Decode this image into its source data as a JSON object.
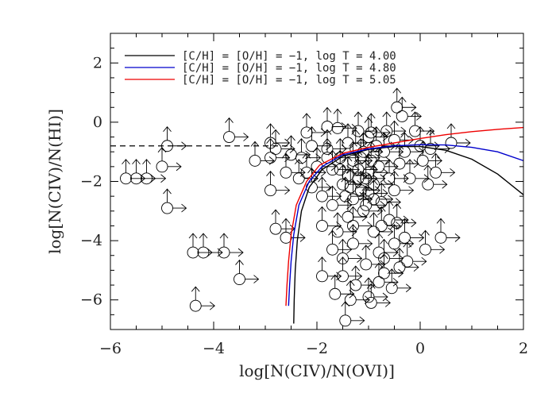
{
  "chart_data": {
    "type": "scatter",
    "title": "",
    "xlabel": "log[N(CIV)/N(OVI)]",
    "ylabel": "log[N(CIV)/N(HI)]",
    "xlim": [
      -6,
      2
    ],
    "ylim": [
      -7,
      3
    ],
    "x_ticks": [
      -6,
      -4,
      -2,
      0,
      2
    ],
    "x_tick_labels": [
      "−6",
      "−4",
      "−2",
      "0",
      "2"
    ],
    "y_ticks": [
      -6,
      -4,
      -2,
      0,
      2
    ],
    "y_tick_labels": [
      "−6",
      "−4",
      "−2",
      "0",
      "2"
    ],
    "grid": false,
    "legend_position": "top-left",
    "reference_line": {
      "y": -0.8,
      "x_range": [
        -6,
        -2.5
      ],
      "style": "dashed",
      "color": "#000000"
    },
    "series": [
      {
        "name": "[C/H] = [O/H] = −1, log T = 4.00",
        "color": "#000000",
        "points": [
          [
            -2.45,
            -6.8
          ],
          [
            -2.44,
            -6
          ],
          [
            -2.42,
            -5
          ],
          [
            -2.38,
            -4
          ],
          [
            -2.3,
            -3
          ],
          [
            -2.15,
            -2.2
          ],
          [
            -1.9,
            -1.6
          ],
          [
            -1.5,
            -1.15
          ],
          [
            -1,
            -0.92
          ],
          [
            -0.5,
            -0.82
          ],
          [
            0,
            -0.82
          ],
          [
            0.5,
            -0.95
          ],
          [
            1,
            -1.25
          ],
          [
            1.5,
            -1.75
          ],
          [
            2,
            -2.45
          ]
        ]
      },
      {
        "name": "[C/H] = [O/H] = −1, log T = 4.80",
        "color": "#0000cc",
        "points": [
          [
            -2.55,
            -6.2
          ],
          [
            -2.53,
            -5.5
          ],
          [
            -2.5,
            -4.7
          ],
          [
            -2.45,
            -3.8
          ],
          [
            -2.35,
            -2.8
          ],
          [
            -2.15,
            -2
          ],
          [
            -1.9,
            -1.5
          ],
          [
            -1.5,
            -1.1
          ],
          [
            -1,
            -0.9
          ],
          [
            -0.5,
            -0.8
          ],
          [
            0,
            -0.76
          ],
          [
            0.5,
            -0.77
          ],
          [
            1,
            -0.85
          ],
          [
            1.5,
            -1
          ],
          [
            2,
            -1.3
          ]
        ]
      },
      {
        "name": "[C/H] = [O/H] = −1, log T = 5.05",
        "color": "#ee0000",
        "points": [
          [
            -2.6,
            -6.2
          ],
          [
            -2.58,
            -5.5
          ],
          [
            -2.55,
            -4.7
          ],
          [
            -2.5,
            -3.8
          ],
          [
            -2.4,
            -2.8
          ],
          [
            -2.2,
            -2
          ],
          [
            -1.95,
            -1.45
          ],
          [
            -1.5,
            -1.05
          ],
          [
            -1,
            -0.85
          ],
          [
            -0.5,
            -0.7
          ],
          [
            0,
            -0.55
          ],
          [
            0.5,
            -0.42
          ],
          [
            1,
            -0.32
          ],
          [
            1.5,
            -0.24
          ],
          [
            2,
            -0.18
          ]
        ]
      }
    ],
    "data_points": [
      [
        -5.7,
        -1.9
      ],
      [
        -5.5,
        -1.9
      ],
      [
        -5.3,
        -1.9
      ],
      [
        -5,
        -1.5
      ],
      [
        -4.9,
        -0.8
      ],
      [
        -4.9,
        -2.9
      ],
      [
        -4.4,
        -4.4
      ],
      [
        -4.2,
        -4.4
      ],
      [
        -4.35,
        -6.2
      ],
      [
        -3.7,
        -0.5
      ],
      [
        -3.8,
        -4.4
      ],
      [
        -3.5,
        -5.3
      ],
      [
        -3.2,
        -1.3
      ],
      [
        -2.9,
        -0.7
      ],
      [
        -2.9,
        -1.2
      ],
      [
        -2.8,
        -0.9
      ],
      [
        -2.6,
        -1.7
      ],
      [
        -2.9,
        -2.3
      ],
      [
        -2.8,
        -3.6
      ],
      [
        -2.6,
        -3.9
      ],
      [
        -2.3,
        -1.2
      ],
      [
        -2.2,
        -1.7
      ],
      [
        -2.1,
        -2.2
      ],
      [
        -2.1,
        -0.8
      ],
      [
        -2,
        -1.5
      ],
      [
        -1.9,
        -2.5
      ],
      [
        -1.9,
        -3.5
      ],
      [
        -1.8,
        -0.9
      ],
      [
        -1.7,
        -1.6
      ],
      [
        -1.7,
        -2.8
      ],
      [
        -1.6,
        -0.2
      ],
      [
        -1.55,
        -1.2
      ],
      [
        -1.5,
        -2.1
      ],
      [
        -1.5,
        -4.6
      ],
      [
        -1.5,
        -5.2
      ],
      [
        -1.4,
        -0.7
      ],
      [
        -1.4,
        -1.8
      ],
      [
        -1.4,
        -3.2
      ],
      [
        -1.3,
        -1.3
      ],
      [
        -1.3,
        -2.6
      ],
      [
        -1.3,
        -4.1
      ],
      [
        -1.25,
        -5.5
      ],
      [
        -1.2,
        -0.3
      ],
      [
        -1.2,
        -1.9
      ],
      [
        -1.15,
        -2.3
      ],
      [
        -1.1,
        -1
      ],
      [
        -1.1,
        -3
      ],
      [
        -1.05,
        -4.8
      ],
      [
        -1,
        -0.5
      ],
      [
        -1,
        -1.7
      ],
      [
        -1,
        -2.4
      ],
      [
        -1,
        -5.9
      ],
      [
        -0.95,
        -1.3
      ],
      [
        -0.9,
        -2.1
      ],
      [
        -0.9,
        -3.7
      ],
      [
        -0.85,
        -0.8
      ],
      [
        -0.8,
        -1.5
      ],
      [
        -0.8,
        -4.4
      ],
      [
        -0.75,
        -2.7
      ],
      [
        -0.7,
        -1
      ],
      [
        -0.7,
        -5.1
      ],
      [
        -0.65,
        -0.3
      ],
      [
        -0.6,
        -1.9
      ],
      [
        -0.6,
        -3.3
      ],
      [
        -0.5,
        -0.6
      ],
      [
        -0.5,
        -2.3
      ],
      [
        -0.5,
        -4.1
      ],
      [
        -0.45,
        0.5
      ],
      [
        -0.4,
        -1.4
      ],
      [
        -0.4,
        -4.9
      ],
      [
        -0.35,
        0.2
      ],
      [
        -0.3,
        -1
      ],
      [
        -0.3,
        -3.9
      ],
      [
        -0.2,
        -1.9
      ],
      [
        -0.1,
        -0.3
      ],
      [
        0,
        -0.8
      ],
      [
        0.05,
        -1.3
      ],
      [
        0.1,
        -4.3
      ],
      [
        0.3,
        -1.7
      ],
      [
        0.4,
        -3.9
      ],
      [
        0.6,
        -0.7
      ],
      [
        -1.45,
        -6.7
      ],
      [
        -1.35,
        -6
      ],
      [
        -0.95,
        -6.1
      ],
      [
        -2.2,
        -0.35
      ],
      [
        -1.8,
        -0.15
      ],
      [
        -1.65,
        -5.8
      ],
      [
        -1.2,
        -1.6
      ],
      [
        -1.35,
        -2.2
      ],
      [
        -1.05,
        -1.9
      ],
      [
        -0.9,
        -2.6
      ],
      [
        -1.25,
        -0.9
      ],
      [
        -0.95,
        -0.35
      ],
      [
        -1.6,
        -3.7
      ],
      [
        -0.55,
        -5.6
      ],
      [
        -0.7,
        -4.6
      ],
      [
        -0.25,
        -4.7
      ],
      [
        0.2,
        -0.9
      ],
      [
        -1.8,
        -1.2
      ],
      [
        -2.5,
        -1.1
      ],
      [
        -2.35,
        -1.9
      ],
      [
        -1.55,
        -1.6
      ],
      [
        -1.05,
        -2.8
      ],
      [
        -0.75,
        -3.5
      ],
      [
        -1.3,
        -3.5
      ],
      [
        -1.7,
        -4.3
      ],
      [
        -1.9,
        -5.2
      ],
      [
        -0.8,
        -5.4
      ],
      [
        -0.45,
        -3.4
      ],
      [
        0.15,
        -2.1
      ],
      [
        -1.15,
        -1.2
      ],
      [
        -1.45,
        -2.5
      ]
    ]
  }
}
